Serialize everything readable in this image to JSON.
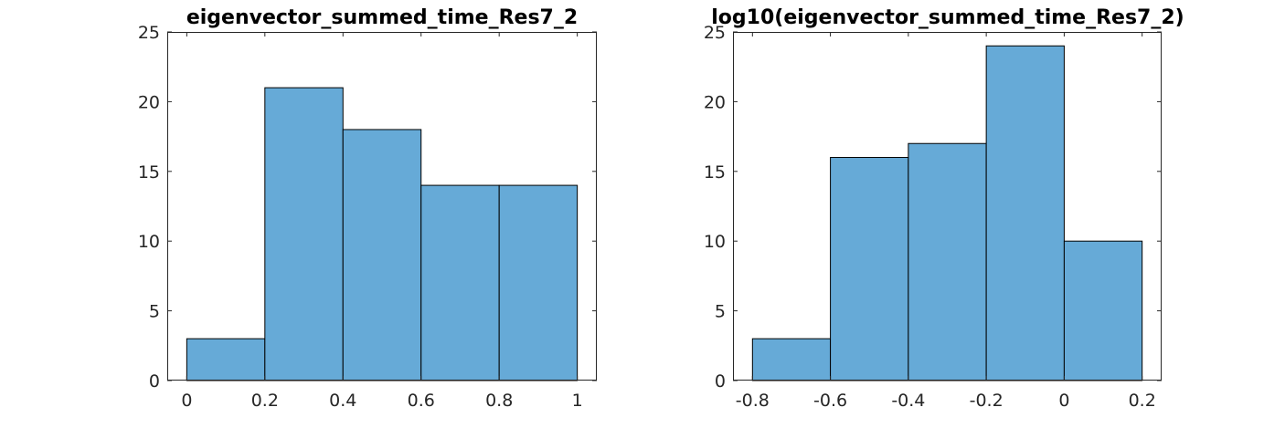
{
  "chart_data": [
    {
      "type": "bar",
      "subtype": "histogram",
      "title": "eigenvector_summed_time_Res7_2",
      "xlabel": "",
      "ylabel": "",
      "bin_edges": [
        0,
        0.2,
        0.4,
        0.6,
        0.8,
        1
      ],
      "values": [
        3,
        21,
        18,
        14,
        14
      ],
      "xlim": [
        -0.05,
        1.05
      ],
      "ylim": [
        0,
        25
      ],
      "xticks": [
        0,
        0.2,
        0.4,
        0.6,
        0.8,
        1
      ],
      "xtick_labels": [
        "0",
        "0.2",
        "0.4",
        "0.6",
        "0.8",
        "1"
      ],
      "yticks": [
        0,
        5,
        10,
        15,
        20,
        25
      ],
      "ytick_labels": [
        "0",
        "5",
        "10",
        "15",
        "20",
        "25"
      ],
      "bar_color": "#66aad7",
      "edge_color": "#000000",
      "grid": false
    },
    {
      "type": "bar",
      "subtype": "histogram",
      "title": "log10(eigenvector_summed_time_Res7_2)",
      "xlabel": "",
      "ylabel": "",
      "bin_edges": [
        -0.8,
        -0.6,
        -0.4,
        -0.2,
        0,
        0.2
      ],
      "values": [
        3,
        16,
        17,
        24,
        10
      ],
      "xlim": [
        -0.85,
        0.25
      ],
      "ylim": [
        0,
        25
      ],
      "xticks": [
        -0.8,
        -0.6,
        -0.4,
        -0.2,
        0,
        0.2
      ],
      "xtick_labels": [
        "-0.8",
        "-0.6",
        "-0.4",
        "-0.2",
        "0",
        "0.2"
      ],
      "yticks": [
        0,
        5,
        10,
        15,
        20,
        25
      ],
      "ytick_labels": [
        "0",
        "5",
        "10",
        "15",
        "20",
        "25"
      ],
      "bar_color": "#66aad7",
      "edge_color": "#000000",
      "grid": false
    }
  ]
}
